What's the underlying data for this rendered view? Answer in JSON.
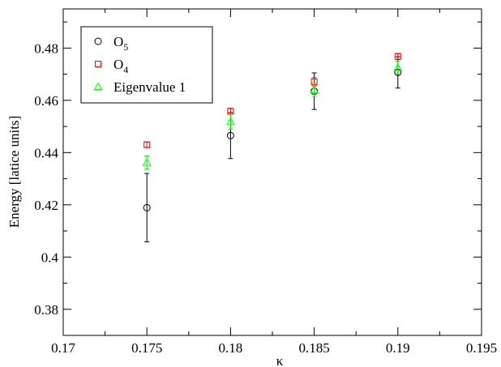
{
  "chart_data": {
    "type": "scatter",
    "title": "",
    "xlabel": "κ",
    "ylabel": "Energy [latice units]",
    "xlim": [
      0.17,
      0.195
    ],
    "ylim": [
      0.37,
      0.495
    ],
    "x_ticks": [
      "0.17",
      "0.175",
      "0.18",
      "0.185",
      "0.19",
      "0.195"
    ],
    "x_tick_values": [
      0.17,
      0.175,
      0.18,
      0.185,
      0.19,
      0.195
    ],
    "y_ticks": [
      "0.38",
      "0.4",
      "0.42",
      "0.44",
      "0.46",
      "0.48"
    ],
    "y_tick_values": [
      0.38,
      0.4,
      0.42,
      0.44,
      0.46,
      0.48
    ],
    "grid": false,
    "legend_position": "top-left",
    "series": [
      {
        "name": "O",
        "subscript": "5",
        "marker": "circle",
        "color": "#000000",
        "x": [
          0.175,
          0.18,
          0.185,
          0.19
        ],
        "y": [
          0.4189,
          0.4465,
          0.4635,
          0.4707
        ],
        "err": [
          0.0131,
          0.0088,
          0.007,
          0.006
        ]
      },
      {
        "name": "O",
        "subscript": "4",
        "marker": "square",
        "color": "#ff0000",
        "x": [
          0.175,
          0.18,
          0.185,
          0.19
        ],
        "y": [
          0.443,
          0.4558,
          0.4671,
          0.4768
        ],
        "err": [
          0.001,
          0.0012,
          0.0016,
          0.0012
        ]
      },
      {
        "name": "Eigenvalue 1",
        "subscript": "",
        "marker": "triangle",
        "color": "#00ff00",
        "x": [
          0.175,
          0.18,
          0.185,
          0.19
        ],
        "y": [
          0.4362,
          0.4518,
          0.464,
          0.4725
        ],
        "err": [
          0.0025,
          0.0028,
          0.0025,
          0.0024
        ]
      }
    ]
  }
}
